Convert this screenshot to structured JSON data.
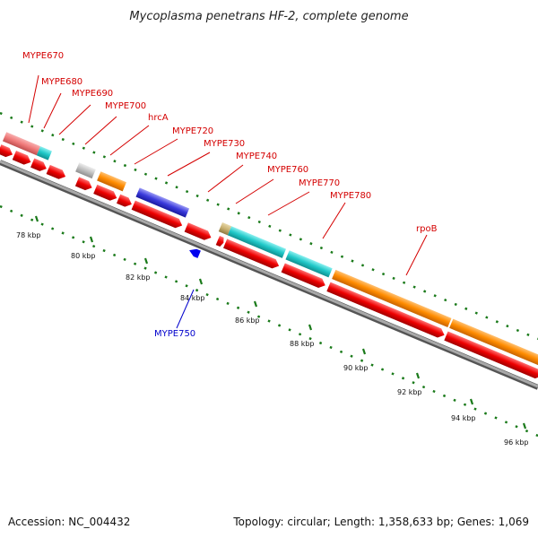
{
  "header": {
    "title": "Mycoplasma penetrans HF-2, complete genome"
  },
  "footer": {
    "accession": "Accession: NC_004432",
    "summary": "Topology: circular; Length: 1,358,633 bp; Genes: 1,069"
  },
  "colors": {
    "label_forward": "#d40000",
    "label_reverse": "#0000cc",
    "backbone": "#808080",
    "tick": "#1a7a1a",
    "arrow_red": "#ee0000",
    "bar_orange": "#ff8c00",
    "bar_cyan": "#20c8c8",
    "bar_blue": "#3a3adc",
    "bar_pink": "#f07a7a",
    "bar_gray": "#c0c0c0",
    "bar_tan": "#c8b070"
  },
  "scale_labels": [
    "78 kbp",
    "80 kbp",
    "82 kbp",
    "84 kbp",
    "86 kbp",
    "88 kbp",
    "90 kbp",
    "92 kbp",
    "94 kbp",
    "96 kbp"
  ],
  "gene_labels": [
    {
      "text": "MYPE670",
      "strand": "forward"
    },
    {
      "text": "MYPE680",
      "strand": "forward"
    },
    {
      "text": "MYPE690",
      "strand": "forward"
    },
    {
      "text": "MYPE700",
      "strand": "forward"
    },
    {
      "text": "hrcA",
      "strand": "forward"
    },
    {
      "text": "MYPE720",
      "strand": "forward"
    },
    {
      "text": "MYPE730",
      "strand": "forward"
    },
    {
      "text": "MYPE740",
      "strand": "forward"
    },
    {
      "text": "MYPE760",
      "strand": "forward"
    },
    {
      "text": "MYPE770",
      "strand": "forward"
    },
    {
      "text": "MYPE780",
      "strand": "forward"
    },
    {
      "text": "rpoB",
      "strand": "forward"
    },
    {
      "text": "MYPE750",
      "strand": "reverse"
    }
  ]
}
